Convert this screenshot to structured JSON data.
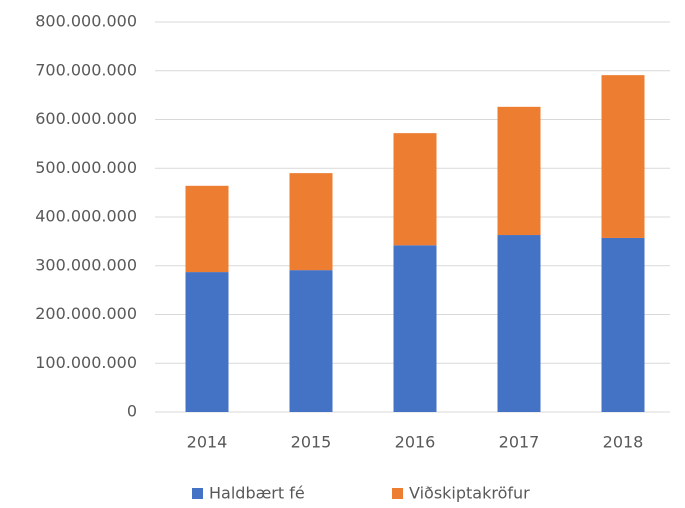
{
  "chart_data": {
    "type": "stacked_bar",
    "categories": [
      "2014",
      "2015",
      "2016",
      "2017",
      "2018"
    ],
    "series": [
      {
        "name": "Haldbært fé",
        "color": "#4472c4",
        "values": [
          287000000,
          291000000,
          342000000,
          363000000,
          357000000
        ]
      },
      {
        "name": "Viðskiptakröfur",
        "color": "#ed7d31",
        "values": [
          177000000,
          199000000,
          230000000,
          263000000,
          334000000
        ]
      }
    ],
    "ylim": [
      0,
      800000000
    ],
    "yticks": [
      0,
      {
        "value": 100000000,
        "label": "100.000.000"
      },
      {
        "value": 200000000,
        "label": "200.000.000"
      },
      {
        "value": 300000000,
        "label": "300.000.000"
      },
      {
        "value": 400000000,
        "label": "400.000.000"
      },
      {
        "value": 500000000,
        "label": "500.000.000"
      },
      {
        "value": 600000000,
        "label": "600.000.000"
      },
      {
        "value": 700000000,
        "label": "700.000.000"
      },
      {
        "value": 800000000,
        "label": "800.000.000"
      }
    ],
    "grid": true,
    "legend": "bottom"
  }
}
